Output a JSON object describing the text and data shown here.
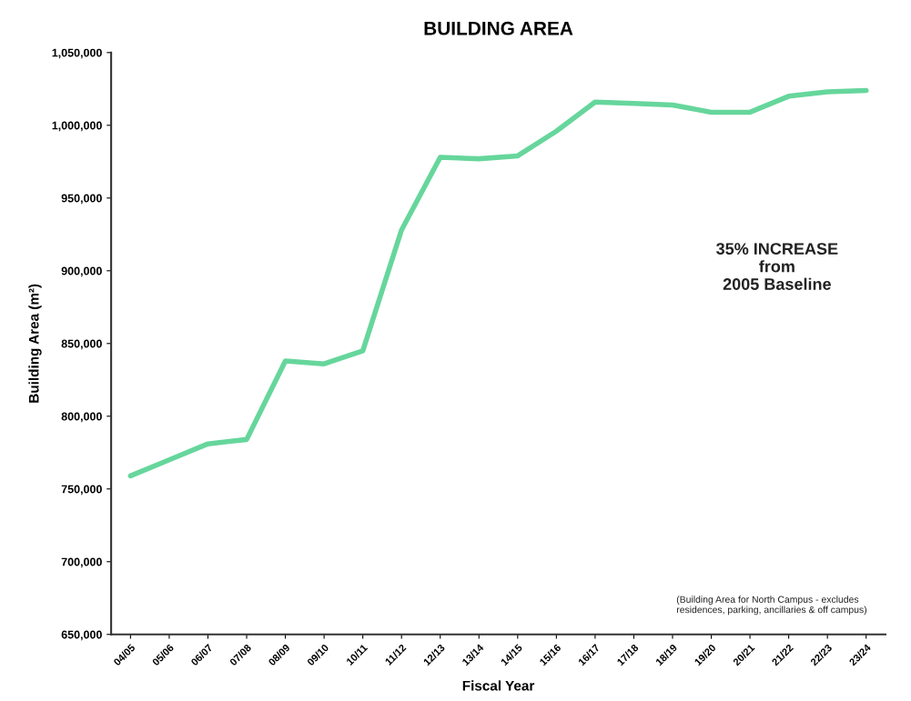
{
  "chart_data": {
    "type": "line",
    "title": "BUILDING AREA",
    "xlabel": "Fiscal Year",
    "ylabel": "Building Area (m²)",
    "categories": [
      "04/05",
      "05/06",
      "06/07",
      "07/08",
      "08/09",
      "09/10",
      "10/11",
      "11/12",
      "12/13",
      "13/14",
      "14/15",
      "15/16",
      "16/17",
      "17/18",
      "18/19",
      "19/20",
      "20/21",
      "21/22",
      "22/23",
      "23/24"
    ],
    "series": [
      {
        "color": "#66d69c",
        "values": [
          759000,
          770000,
          781000,
          784000,
          838000,
          836000,
          845000,
          928000,
          978000,
          977000,
          979000,
          996000,
          1016000,
          1015000,
          1014000,
          1009000,
          1009000,
          1020000,
          1023000,
          1024000
        ]
      }
    ],
    "ylim": [
      650000,
      1050000
    ],
    "yticks": [
      {
        "value": 650000,
        "label": "650,000"
      },
      {
        "value": 700000,
        "label": "700,000"
      },
      {
        "value": 750000,
        "label": "750,000"
      },
      {
        "value": 800000,
        "label": "800,000"
      },
      {
        "value": 850000,
        "label": "850,000"
      },
      {
        "value": 900000,
        "label": "900,000"
      },
      {
        "value": 950000,
        "label": "950,000"
      },
      {
        "value": 1000000,
        "label": "1,000,000"
      },
      {
        "value": 1050000,
        "label": "1,050,000"
      }
    ],
    "annotations": [
      "35% INCREASE\nfrom\n2005 Baseline",
      "(Building Area for North Campus - excludes\nresidences, parking, ancillaries & off campus)"
    ],
    "grid": false,
    "legend": false,
    "marker": "none",
    "line_style": "solid"
  }
}
